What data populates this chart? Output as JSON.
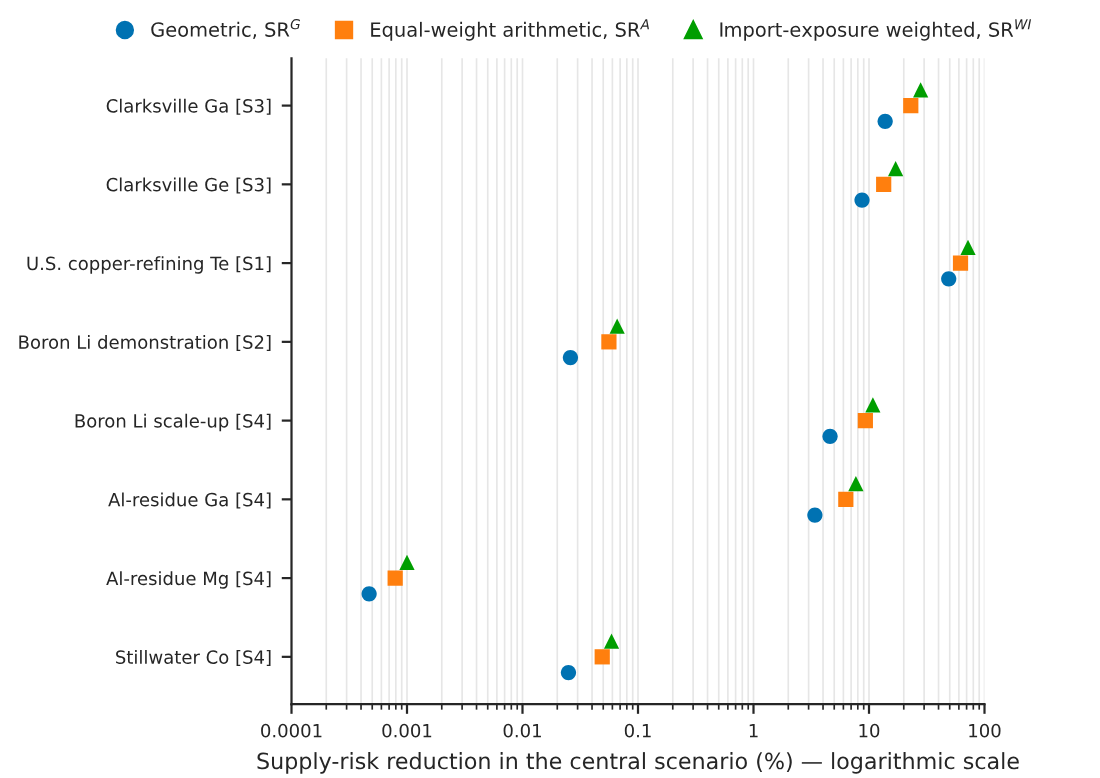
{
  "chart_data": {
    "type": "scatter",
    "orientation": "horizontal",
    "xlabel": "Supply-risk reduction in the central scenario (%) — logarithmic scale",
    "categories": [
      "Clarksville Ga [S3]",
      "Clarksville Ge [S3]",
      "U.S. copper-refining Te [S1]",
      "Boron Li demonstration [S2]",
      "Boron Li scale-up [S4]",
      "Al-residue Ga [S4]",
      "Al-residue Mg [S4]",
      "Stillwater Co [S4]"
    ],
    "series": [
      {
        "name": "Geometric, SR$^{G}$",
        "color": "#0072b2",
        "marker": "circle",
        "values": [
          13.8,
          8.7,
          49,
          0.026,
          4.6,
          3.4,
          0.00047,
          0.025
        ]
      },
      {
        "name": "Equal-weight arithmetic, SR$^{A}$",
        "color": "#ff7f0e",
        "marker": "square",
        "values": [
          23,
          13.4,
          62,
          0.056,
          9.3,
          6.3,
          0.00079,
          0.049
        ]
      },
      {
        "name": "Import-exposure weighted, SR$^{WI}$",
        "color": "#009e00",
        "marker": "triangle",
        "values": [
          28,
          17,
          72,
          0.066,
          10.8,
          7.7,
          0.001,
          0.059
        ]
      }
    ],
    "log": "x",
    "xlim": [
      0.0001,
      100
    ],
    "xticks": [
      0.0001,
      0.001,
      0.01,
      0.1,
      1,
      10,
      100
    ],
    "grid": "x",
    "legend": "top"
  }
}
